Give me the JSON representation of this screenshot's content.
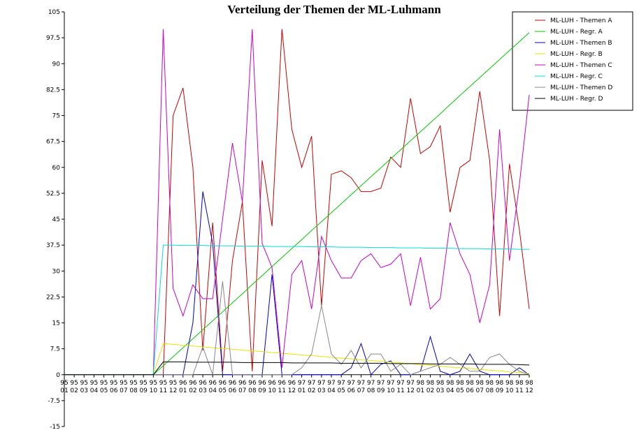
{
  "chart_data": {
    "type": "line",
    "title": "Verteilung der Themen der ML-Luhmann",
    "categories": [
      [
        "95",
        "01"
      ],
      [
        "95",
        "02"
      ],
      [
        "95",
        "03"
      ],
      [
        "95",
        "04"
      ],
      [
        "95",
        "05"
      ],
      [
        "95",
        "06"
      ],
      [
        "95",
        "07"
      ],
      [
        "95",
        "08"
      ],
      [
        "95",
        "09"
      ],
      [
        "95",
        "10"
      ],
      [
        "95",
        "11"
      ],
      [
        "95",
        "12"
      ],
      [
        "96",
        "01"
      ],
      [
        "96",
        "02"
      ],
      [
        "96",
        "03"
      ],
      [
        "96",
        "04"
      ],
      [
        "96",
        "05"
      ],
      [
        "96",
        "06"
      ],
      [
        "96",
        "07"
      ],
      [
        "96",
        "08"
      ],
      [
        "96",
        "09"
      ],
      [
        "96",
        "10"
      ],
      [
        "96",
        "11"
      ],
      [
        "96",
        "12"
      ],
      [
        "97",
        "01"
      ],
      [
        "97",
        "02"
      ],
      [
        "97",
        "03"
      ],
      [
        "97",
        "04"
      ],
      [
        "97",
        "05"
      ],
      [
        "97",
        "06"
      ],
      [
        "97",
        "07"
      ],
      [
        "97",
        "08"
      ],
      [
        "97",
        "09"
      ],
      [
        "97",
        "10"
      ],
      [
        "97",
        "11"
      ],
      [
        "97",
        "12"
      ],
      [
        "98",
        "01"
      ],
      [
        "98",
        "02"
      ],
      [
        "98",
        "03"
      ],
      [
        "98",
        "04"
      ],
      [
        "98",
        "05"
      ],
      [
        "98",
        "06"
      ],
      [
        "98",
        "07"
      ],
      [
        "98",
        "08"
      ],
      [
        "98",
        "09"
      ],
      [
        "98",
        "10"
      ],
      [
        "98",
        "11"
      ],
      [
        "98",
        "12"
      ]
    ],
    "ylim": [
      -15,
      105
    ],
    "yticks": [
      -15,
      -7.5,
      0,
      7.5,
      15,
      22.5,
      30,
      37.5,
      45,
      52.5,
      60,
      67.5,
      75,
      82.5,
      90,
      97.5,
      105
    ],
    "legend": "upper right",
    "series": [
      {
        "name": "ML-LUH - Themen A",
        "color": "#cc0000",
        "values": [
          0,
          0,
          0,
          0,
          0,
          0,
          0,
          0,
          0,
          0,
          0,
          75,
          83,
          60,
          7,
          44,
          1,
          33,
          50,
          1,
          62,
          43,
          100,
          71,
          60,
          69,
          20,
          58,
          59,
          57,
          53,
          53,
          54,
          63,
          60,
          80,
          64,
          66,
          72,
          47,
          60,
          62,
          82,
          62,
          17,
          61,
          42,
          19
        ]
      },
      {
        "name": "ML-LUH - Regr. A",
        "color": "#00cc00",
        "values": [
          0,
          0,
          0,
          0,
          0,
          0,
          0,
          0,
          0,
          0,
          2.6,
          5.2,
          7.8,
          10.4,
          13,
          15.6,
          18.2,
          20.8,
          23.4,
          26.1,
          28.7,
          31.3,
          33.9,
          36.5,
          39.1,
          41.7,
          44.3,
          46.9,
          49.5,
          52.1,
          54.7,
          57.3,
          59.9,
          62.5,
          65.1,
          67.7,
          70.3,
          72.9,
          75.5,
          78.2,
          80.8,
          83.4,
          86,
          88.6,
          91.2,
          93.8,
          96.4,
          99
        ]
      },
      {
        "name": "ML-LUH - Themen B",
        "color": "#0000cc",
        "values": [
          0,
          0,
          0,
          0,
          0,
          0,
          0,
          0,
          0,
          0,
          0,
          0,
          0,
          15,
          53,
          38,
          0,
          0,
          0,
          0,
          0,
          29,
          0,
          0,
          0,
          0,
          0,
          0,
          0,
          2,
          9,
          0,
          3,
          4,
          0,
          0,
          1,
          11,
          1,
          0,
          1,
          6,
          1,
          0,
          0,
          0,
          2,
          0
        ]
      },
      {
        "name": "ML-LUH - Regr. B",
        "color": "#e6e600",
        "values": [
          0,
          0,
          0,
          0,
          0,
          0,
          0,
          0,
          0,
          0,
          9,
          8.8,
          8.5,
          8.3,
          8.1,
          7.8,
          7.6,
          7.4,
          7.1,
          6.9,
          6.7,
          6.4,
          6.2,
          6.0,
          5.7,
          5.5,
          5.3,
          5.0,
          4.8,
          4.6,
          4.3,
          4.1,
          3.9,
          3.6,
          3.4,
          3.2,
          2.9,
          2.7,
          2.5,
          2.2,
          2.0,
          1.8,
          1.5,
          1.3,
          1.1,
          0.8,
          0.6,
          0.4
        ]
      },
      {
        "name": "ML-LUH - Themen C",
        "color": "#cc00cc",
        "values": [
          0,
          0,
          0,
          0,
          0,
          0,
          0,
          0,
          0,
          0,
          100,
          25,
          17,
          26,
          22,
          22,
          45,
          67,
          50,
          100,
          38,
          31,
          2,
          29,
          33,
          19,
          40,
          33,
          28,
          28,
          33,
          35,
          31,
          32,
          35,
          20,
          34,
          19,
          22,
          44,
          35,
          29,
          15,
          26,
          71,
          33,
          55,
          81
        ]
      },
      {
        "name": "ML-LUH - Regr. C",
        "color": "#00dddd",
        "values": [
          0,
          0,
          0,
          0,
          0,
          0,
          0,
          0,
          0,
          0,
          37.5,
          37.5,
          37.4,
          37.4,
          37.4,
          37.3,
          37.3,
          37.3,
          37.2,
          37.2,
          37.2,
          37.1,
          37.1,
          37.1,
          37.1,
          37.0,
          37.0,
          37.0,
          36.9,
          36.9,
          36.9,
          36.8,
          36.8,
          36.8,
          36.7,
          36.7,
          36.7,
          36.6,
          36.6,
          36.6,
          36.5,
          36.5,
          36.5,
          36.4,
          36.4,
          36.4,
          36.3,
          36.3
        ]
      },
      {
        "name": "ML-LUH - Themen D",
        "color": "#888888",
        "values": [
          0,
          0,
          0,
          0,
          0,
          0,
          0,
          0,
          0,
          0,
          0,
          0,
          0,
          0,
          8,
          0,
          27,
          0,
          0,
          0,
          0,
          0,
          0,
          0,
          2,
          6,
          20,
          6,
          3,
          7,
          2,
          6,
          6,
          1,
          3,
          0,
          1,
          2,
          3,
          5,
          3,
          1,
          1,
          5,
          6,
          3,
          1,
          0
        ]
      },
      {
        "name": "ML-LUH - Regr. D",
        "color": "#000000",
        "values": [
          0,
          0,
          0,
          0,
          0,
          0,
          0,
          0,
          0,
          0,
          3.7,
          3.7,
          3.7,
          3.6,
          3.6,
          3.6,
          3.6,
          3.6,
          3.5,
          3.5,
          3.5,
          3.5,
          3.5,
          3.4,
          3.4,
          3.4,
          3.4,
          3.4,
          3.3,
          3.3,
          3.3,
          3.3,
          3.3,
          3.2,
          3.2,
          3.2,
          3.2,
          3.1,
          3.1,
          3.1,
          3.1,
          3.1,
          3.0,
          3.0,
          3.0,
          3.0,
          2.9,
          2.8
        ]
      }
    ]
  }
}
